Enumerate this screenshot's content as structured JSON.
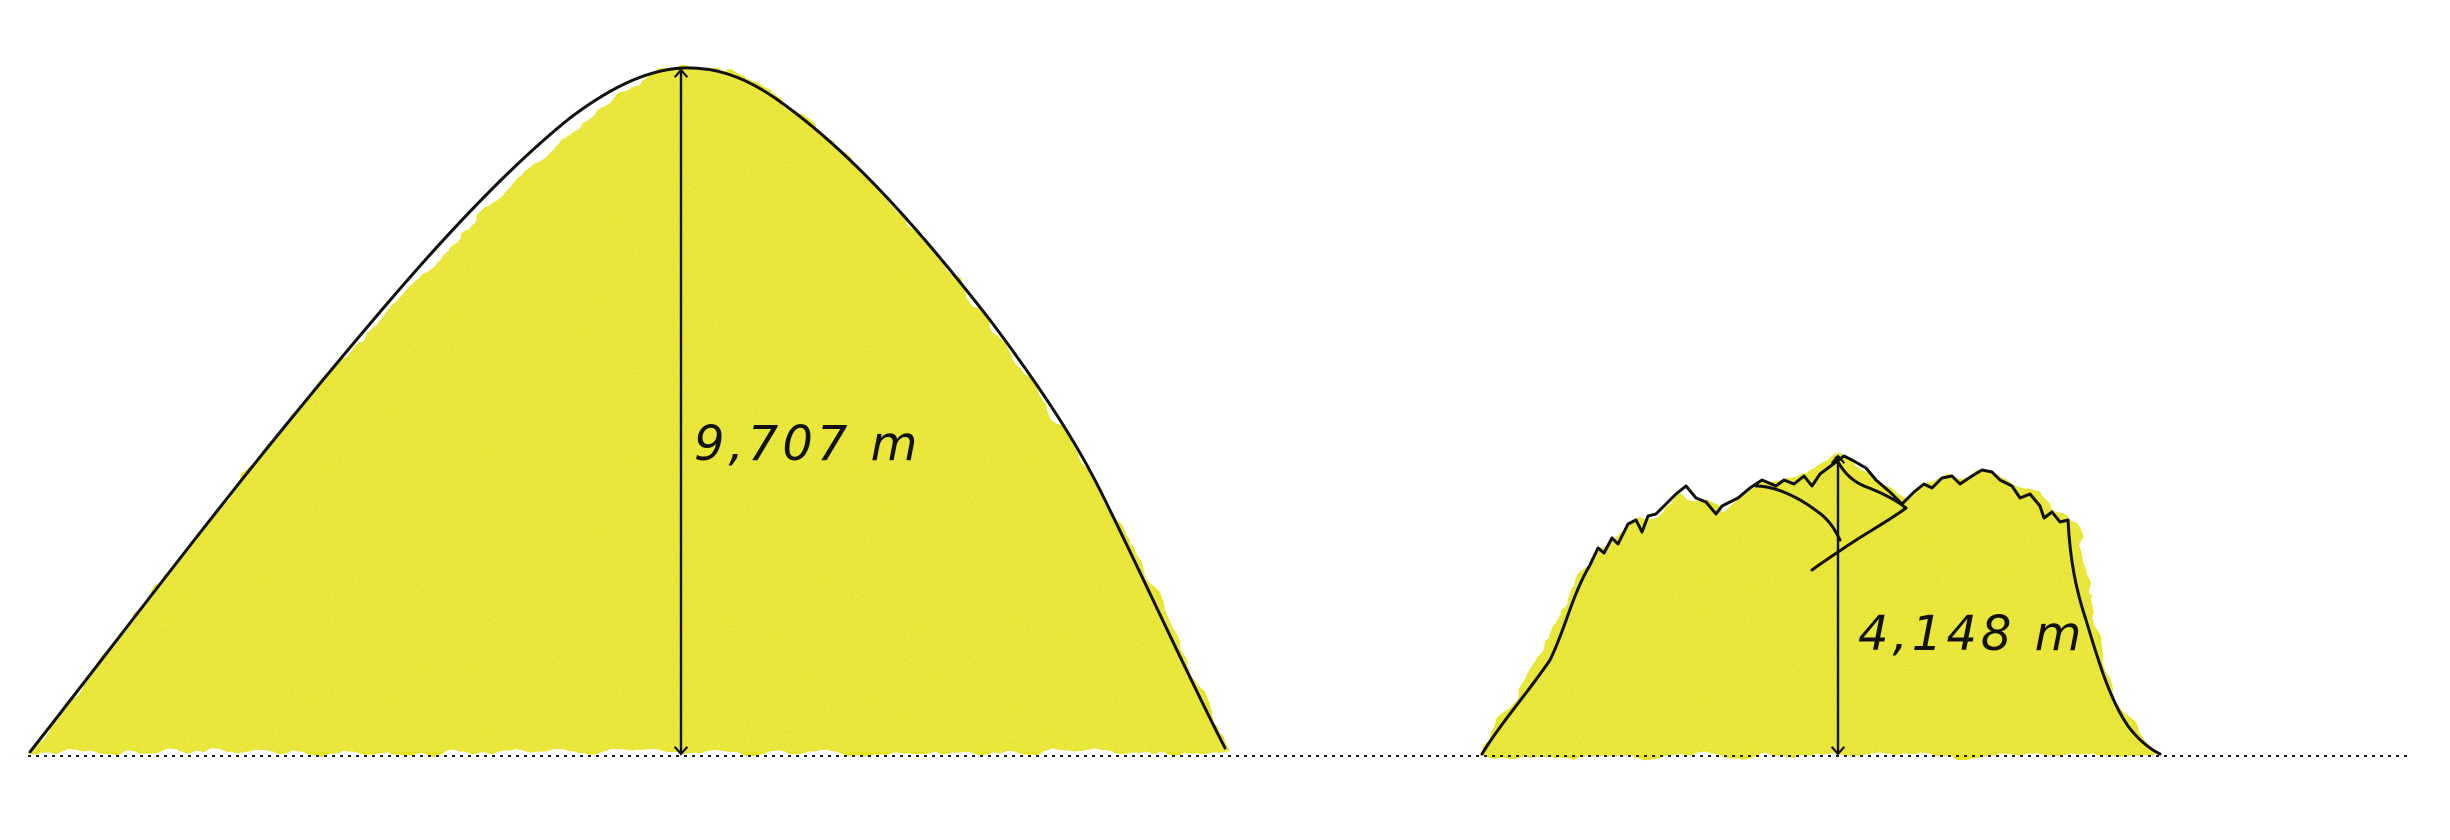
{
  "colors": {
    "mountain_fill": "#e6e324",
    "mountain_fill_light": "#eef060",
    "outline": "#111111",
    "baseline": "#222222",
    "background": "#ffffff"
  },
  "mountains": [
    {
      "id": "tall-mountain",
      "height_label": "9,707 m",
      "shape": "smooth-peak"
    },
    {
      "id": "plateau-mountain",
      "height_label": "4,148 m",
      "shape": "jagged-plateau"
    }
  ]
}
